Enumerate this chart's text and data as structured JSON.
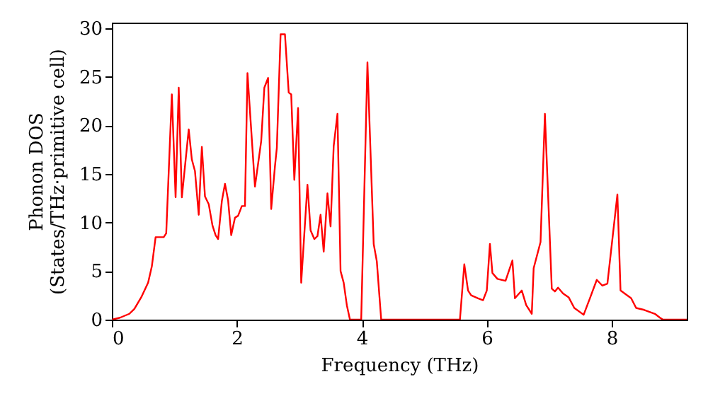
{
  "chart_data": {
    "type": "line",
    "xlabel": "Frequency (THz)",
    "ylabel": "Phonon DOS\n(States/THz·primitive cell)",
    "xlim": [
      0,
      9.2
    ],
    "ylim": [
      0,
      30.6
    ],
    "xticks": [
      0,
      2,
      4,
      6,
      8
    ],
    "yticks": [
      0,
      5,
      10,
      15,
      20,
      25,
      30
    ],
    "grid": false,
    "marker": "none",
    "line_style": "solid",
    "x": [
      0,
      0.13,
      0.28,
      0.36,
      0.47,
      0.58,
      0.64,
      0.7,
      0.83,
      0.87,
      0.96,
      1.02,
      1.07,
      1.12,
      1.23,
      1.28,
      1.33,
      1.39,
      1.44,
      1.49,
      1.55,
      1.61,
      1.66,
      1.7,
      1.76,
      1.81,
      1.86,
      1.91,
      1.97,
      2.02,
      2.08,
      2.13,
      2.17,
      2.29,
      2.39,
      2.44,
      2.5,
      2.55,
      2.61,
      2.64,
      2.7,
      2.77,
      2.83,
      2.87,
      2.92,
      2.98,
      3.03,
      3.13,
      3.18,
      3.24,
      3.29,
      3.34,
      3.39,
      3.45,
      3.5,
      3.55,
      3.61,
      3.66,
      3.71,
      3.76,
      3.81,
      3.99,
      4.09,
      4.19,
      4.24,
      4.31,
      5.57,
      5.64,
      5.7,
      5.75,
      5.86,
      5.94,
      6.0,
      6.05,
      6.09,
      6.17,
      6.3,
      6.41,
      6.45,
      6.56,
      6.63,
      6.72,
      6.75,
      6.86,
      6.93,
      7.04,
      7.09,
      7.14,
      7.22,
      7.31,
      7.4,
      7.55,
      7.65,
      7.76,
      7.85,
      7.93,
      8.09,
      8.14,
      8.31,
      8.39,
      8.52,
      8.69,
      8.77,
      8.82,
      9.2
    ],
    "series": [
      {
        "color": "#ff0000",
        "values": [
          0,
          0.2,
          0.6,
          1.1,
          2.3,
          3.8,
          5.5,
          8.5,
          8.5,
          8.9,
          23.2,
          12.6,
          23.9,
          12.6,
          19.6,
          16.5,
          15.3,
          10.8,
          17.8,
          12.7,
          11.9,
          9.7,
          8.7,
          8.3,
          12.2,
          14,
          12.3,
          8.7,
          10.5,
          10.7,
          11.7,
          11.7,
          25.4,
          13.7,
          18.4,
          23.9,
          24.9,
          11.4,
          15.8,
          17.7,
          29.4,
          29.4,
          23.4,
          23.2,
          14.4,
          21.8,
          3.8,
          13.9,
          9.2,
          8.3,
          8.6,
          10.8,
          7,
          13,
          9.6,
          17.9,
          21.2,
          5,
          3.8,
          1.5,
          0,
          0,
          26.5,
          7.8,
          6,
          0,
          0,
          5.7,
          3,
          2.5,
          2.2,
          2,
          3,
          7.8,
          4.8,
          4.2,
          4,
          6.1,
          2.2,
          3,
          1.5,
          0.6,
          5.3,
          8,
          21.2,
          3.2,
          2.9,
          3.3,
          2.7,
          2.3,
          1.2,
          0.5,
          2.2,
          4.1,
          3.5,
          3.7,
          12.9,
          3,
          2.2,
          1.2,
          1,
          0.6,
          0.2,
          0,
          0
        ]
      }
    ]
  }
}
